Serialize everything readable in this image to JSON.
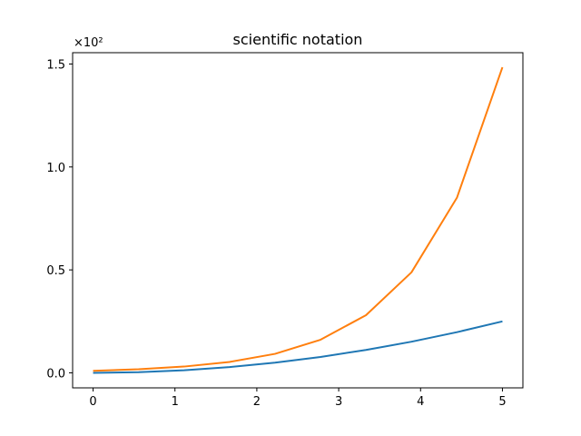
{
  "chart_data": {
    "type": "line",
    "title": "scientific notation",
    "xlabel": "",
    "ylabel": "",
    "y_offset_label": "×10²",
    "xlim": [
      -0.25,
      5.25
    ],
    "ylim": [
      -0.073,
      1.555
    ],
    "x_ticks": [
      0,
      1,
      2,
      3,
      4,
      5
    ],
    "x_tick_labels": [
      "0",
      "1",
      "2",
      "3",
      "4",
      "5"
    ],
    "y_ticks": [
      0.0,
      0.5,
      1.0,
      1.5
    ],
    "y_tick_labels": [
      "0.0",
      "0.5",
      "1.0",
      "1.5"
    ],
    "grid": false,
    "legend": "none",
    "x": [
      0,
      0.5556,
      1.1111,
      1.6667,
      2.2222,
      2.7778,
      3.3333,
      3.8889,
      4.4444,
      5
    ],
    "series": [
      {
        "color": "#1f77b4",
        "values": [
          0.0,
          0.0031,
          0.0123,
          0.0278,
          0.0494,
          0.0772,
          0.1111,
          0.1512,
          0.1975,
          0.25
        ]
      },
      {
        "color": "#ff7f0e",
        "values": [
          0.01,
          0.0174,
          0.0304,
          0.0529,
          0.0922,
          0.1607,
          0.2801,
          0.4881,
          0.8506,
          1.4841
        ]
      }
    ]
  }
}
